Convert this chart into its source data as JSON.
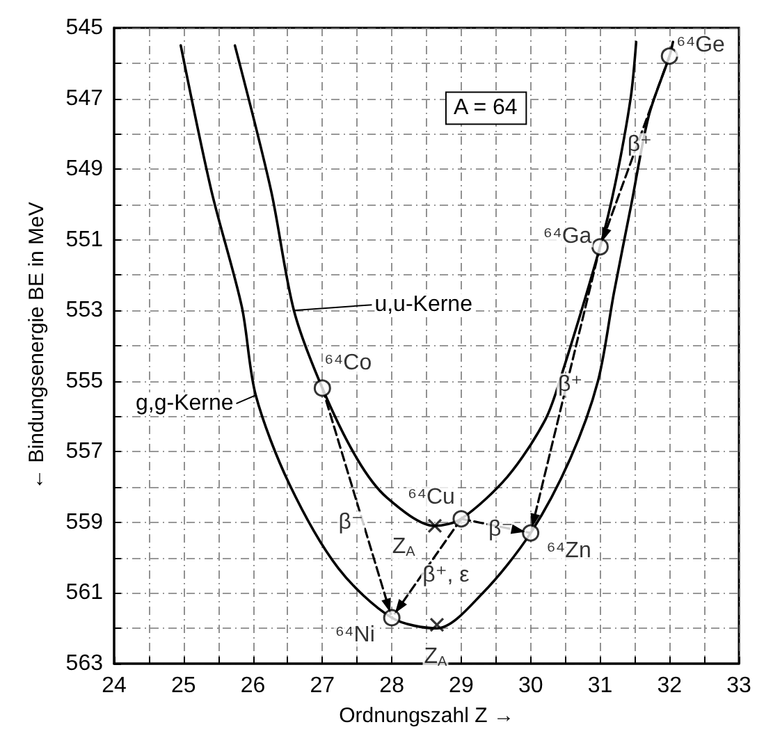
{
  "chart_data": {
    "type": "line",
    "xlabel": "Ordnungszahl Z →",
    "ylabel": "← Bindungsenergie BE in MeV",
    "xlim": [
      24,
      33
    ],
    "ylim": [
      563,
      545
    ],
    "xticks": [
      24,
      {
        "value": 24.5,
        "label": null
      },
      25,
      {
        "value": 25.5,
        "label": null
      },
      26,
      {
        "value": 26.5,
        "label": null
      },
      27,
      {
        "value": 27.5,
        "label": null
      },
      28,
      {
        "value": 28.5,
        "label": null
      },
      29,
      {
        "value": 29.5,
        "label": null
      },
      30,
      {
        "value": 30.5,
        "label": null
      },
      31,
      {
        "value": 31.5,
        "label": null
      },
      32,
      {
        "value": 32.5,
        "label": null
      },
      33
    ],
    "yticks": [
      545,
      {
        "value": 546,
        "label": null
      },
      547,
      {
        "value": 548,
        "label": null
      },
      549,
      {
        "value": 550,
        "label": null
      },
      551,
      {
        "value": 552,
        "label": null
      },
      553,
      {
        "value": 554,
        "label": null
      },
      555,
      {
        "value": 556,
        "label": null
      },
      557,
      {
        "value": 558,
        "label": null
      },
      559,
      {
        "value": 560,
        "label": null
      },
      561,
      {
        "value": 562,
        "label": null
      },
      563
    ],
    "grid": true,
    "series": [
      {
        "name": "g,g-Kerne",
        "type": "line",
        "color": "#000000",
        "marker": "none",
        "line_style": "solid",
        "x": [
          24.96,
          25.4,
          25.84,
          26.04,
          26.52,
          27.23,
          28.0,
          28.65,
          29.31,
          30.0,
          30.57,
          30.97,
          31.2,
          31.45,
          31.7,
          32.0,
          32.05
        ],
        "values": [
          545.5,
          549.6,
          552.9,
          555.4,
          557.9,
          560.3,
          561.7,
          562.0,
          561.0,
          559.3,
          557.2,
          555.0,
          552.5,
          550.0,
          547.5,
          545.8,
          545.4
        ]
      },
      {
        "name": "u,u-Kerne",
        "type": "line",
        "color": "#000000",
        "marker": "none",
        "line_style": "solid",
        "x": [
          25.74,
          26.26,
          26.59,
          27.0,
          27.5,
          27.93,
          28.62,
          29.0,
          29.67,
          30.21,
          30.45,
          31.0,
          31.22,
          31.44,
          31.52
        ],
        "values": [
          545.5,
          549.6,
          553.0,
          555.2,
          557.2,
          558.3,
          559.1,
          558.9,
          557.7,
          556.1,
          554.8,
          551.2,
          549.4,
          547.0,
          545.4
        ]
      },
      {
        "type": "line",
        "color": "#000000",
        "marker": "none",
        "line_style": "dashed",
        "x": [
          27,
          28
        ],
        "values": [
          555.2,
          561.7
        ]
      },
      {
        "type": "line",
        "color": "#000000",
        "marker": "none",
        "line_style": "dashed",
        "x": [
          29,
          28
        ],
        "values": [
          558.9,
          561.7
        ]
      },
      {
        "type": "line",
        "color": "#000000",
        "marker": "none",
        "line_style": "dashed",
        "x": [
          29,
          30
        ],
        "values": [
          558.9,
          559.3
        ]
      },
      {
        "type": "line",
        "color": "#000000",
        "marker": "none",
        "line_style": "dashed",
        "x": [
          31,
          30
        ],
        "values": [
          551.2,
          559.3
        ]
      },
      {
        "type": "line",
        "color": "#000000",
        "marker": "none",
        "line_style": "dashed",
        "x": [
          32,
          31
        ],
        "values": [
          545.8,
          551.2
        ]
      },
      {
        "type": "scatter",
        "color": "#000000",
        "marker": "circle",
        "x": [
          27,
          28,
          29,
          30,
          31,
          32
        ],
        "values": [
          555.2,
          561.7,
          558.9,
          559.3,
          551.2,
          545.8
        ]
      },
      {
        "type": "scatter",
        "color": "#000000",
        "marker": "cross",
        "x": [
          28.62,
          28.65
        ],
        "values": [
          559.1,
          561.9
        ]
      }
    ],
    "annotations": [
      "A = 64",
      {
        "text": "⁶⁴Co",
        "x": 27.37,
        "y": 554.5
      },
      {
        "text": "⁶⁴Ge",
        "x": 32.45,
        "y": 545.5
      },
      {
        "text": "⁶⁴Ga",
        "x": 30.53,
        "y": 550.9
      },
      {
        "text": "⁶⁴Cu",
        "x": 28.57,
        "y": 558.3
      },
      {
        "text": "⁶⁴Zn",
        "x": 30.55,
        "y": 559.8
      },
      {
        "text": "⁶⁴Ni",
        "x": 27.47,
        "y": 562.2
      },
      {
        "text": "Z$_{A}$",
        "x": 28.17,
        "y": 559.7
      },
      {
        "text": "Z$_{A}$",
        "x": 28.63,
        "y": 562.8
      },
      {
        "text": "β⁻",
        "x": 27.41,
        "y": 559.0
      },
      {
        "text": "β⁻",
        "x": 29.57,
        "y": 559.2
      },
      {
        "text": "β⁺, ε",
        "x": 28.78,
        "y": 560.5
      },
      {
        "text": "β⁺",
        "x": 30.57,
        "y": 555.1
      },
      {
        "text": "β⁺",
        "x": 31.57,
        "y": 548.3
      }
    ]
  }
}
